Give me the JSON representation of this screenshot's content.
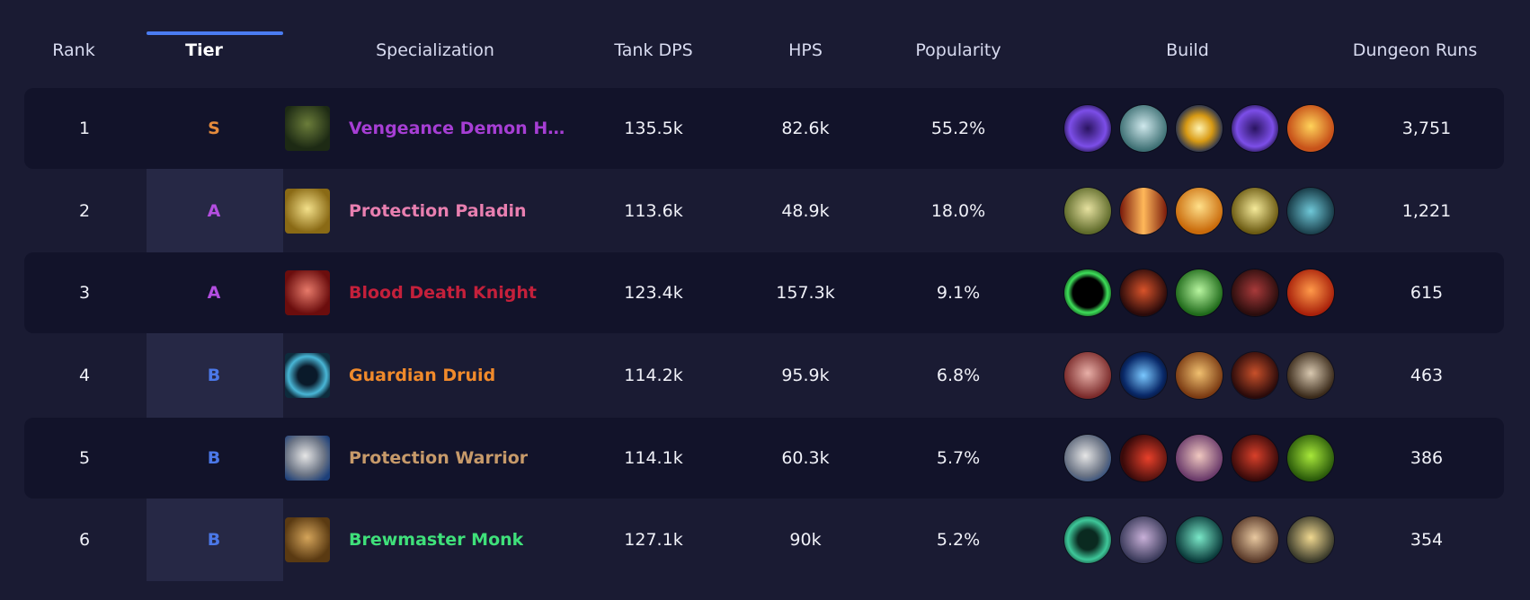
{
  "header": {
    "rank": "Rank",
    "tier": "Tier",
    "specialization": "Specialization",
    "tank_dps": "Tank DPS",
    "hps": "HPS",
    "popularity": "Popularity",
    "build": "Build",
    "dungeon_runs": "Dungeon Runs"
  },
  "tier_colors": {
    "S": "#e58b3c",
    "A": "#b34ee0",
    "B": "#4b78e8"
  },
  "rows": [
    {
      "rank": "1",
      "tier": "S",
      "spec": "Vengeance Demon H…",
      "spec_color": "#a63ed4",
      "spec_icon": "demon-hunter-icon",
      "tank_dps": "135.5k",
      "hps": "82.6k",
      "popularity": "55.2%",
      "runs": "3,751",
      "build": [
        "void-orb-icon",
        "skull-icon",
        "lightning-slash-icon",
        "void-orb-icon",
        "flame-fist-icon"
      ]
    },
    {
      "rank": "2",
      "tier": "A",
      "spec": "Protection Paladin",
      "spec_color": "#e87fb0",
      "spec_icon": "paladin-helm-icon",
      "tank_dps": "113.6k",
      "hps": "48.9k",
      "popularity": "18.0%",
      "runs": "1,221",
      "build": [
        "lion-head-icon",
        "fire-pillar-icon",
        "radiant-figure-icon",
        "golden-helm-icon",
        "chain-icon"
      ]
    },
    {
      "rank": "3",
      "tier": "A",
      "spec": "Blood Death Knight",
      "spec_color": "#c4203b",
      "spec_icon": "blood-skull-icon",
      "tank_dps": "123.4k",
      "hps": "157.3k",
      "popularity": "9.1%",
      "runs": "615",
      "build": [
        "green-portal-icon",
        "demon-skull-icon",
        "green-skull-icon",
        "blood-claw-icon",
        "fire-heart-icon"
      ]
    },
    {
      "rank": "4",
      "tier": "B",
      "spec": "Guardian Druid",
      "spec_color": "#f08a2b",
      "spec_icon": "bear-paw-icon",
      "tank_dps": "114.2k",
      "hps": "95.9k",
      "popularity": "6.8%",
      "runs": "463",
      "build": [
        "claw-wound-icon",
        "blue-swirl-icon",
        "gear-bear-icon",
        "wolf-head-icon",
        "fang-icon"
      ]
    },
    {
      "rank": "5",
      "tier": "B",
      "spec": "Protection Warrior",
      "spec_color": "#c79a6a",
      "spec_icon": "shield-icon",
      "tank_dps": "114.1k",
      "hps": "60.3k",
      "popularity": "5.7%",
      "runs": "386",
      "build": [
        "shield-icon",
        "shockwave-icon",
        "screaming-face-icon",
        "demon-mask-icon",
        "green-orc-icon"
      ]
    },
    {
      "rank": "6",
      "tier": "B",
      "spec": "Brewmaster Monk",
      "spec_color": "#3fe07a",
      "spec_icon": "brewmaster-icon",
      "tank_dps": "127.1k",
      "hps": "90k",
      "popularity": "5.2%",
      "runs": "354",
      "build": [
        "jade-swirl-icon",
        "flying-kick-icon",
        "jade-figure-icon",
        "armor-icon",
        "brew-keg-icon"
      ]
    }
  ]
}
